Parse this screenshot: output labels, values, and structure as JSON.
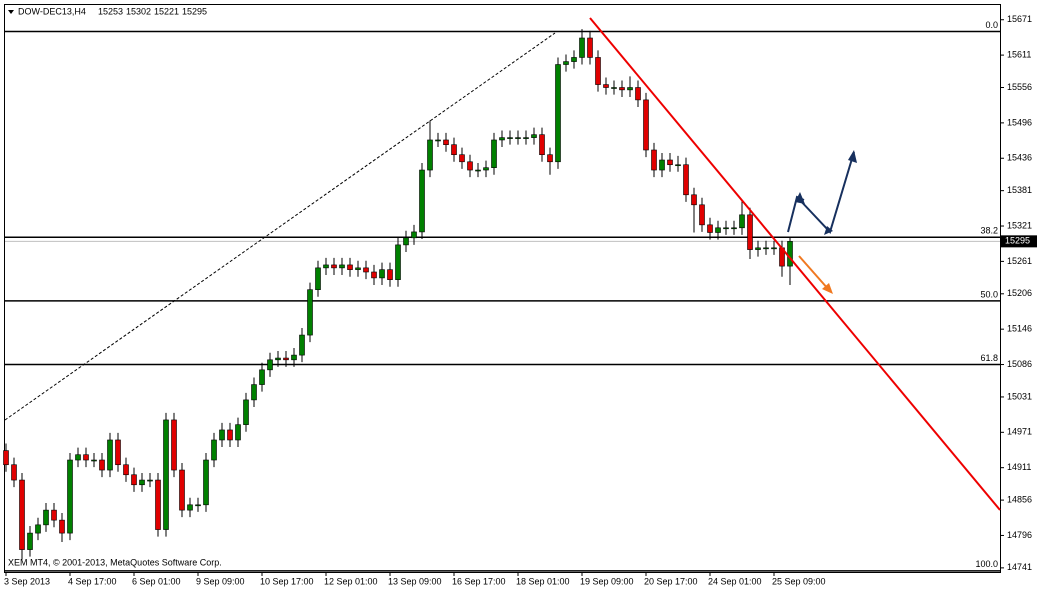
{
  "chart_data": {
    "type": "candlestick",
    "title": "DOW-DEC13,H4",
    "footer": "XEM MT4, © 2001-2013, MetaQuotes Software Corp.",
    "categories": [
      "3 Sep 2013",
      null,
      null,
      null,
      null,
      null,
      null,
      null,
      "4 Sep 17:00",
      null,
      null,
      null,
      null,
      null,
      null,
      null,
      "6 Sep 01:00",
      null,
      null,
      null,
      null,
      null,
      null,
      null,
      "9 Sep 09:00",
      null,
      null,
      null,
      null,
      null,
      null,
      null,
      "10 Sep 17:00",
      null,
      null,
      null,
      null,
      null,
      null,
      null,
      "12 Sep 01:00",
      null,
      null,
      null,
      null,
      null,
      null,
      null,
      "13 Sep 09:00",
      null,
      null,
      null,
      null,
      null,
      null,
      null,
      "16 Sep 17:00",
      null,
      null,
      null,
      null,
      null,
      null,
      null,
      "18 Sep 01:00",
      null,
      null,
      null,
      null,
      null,
      null,
      null,
      "19 Sep 09:00",
      null,
      null,
      null,
      null,
      null,
      null,
      null,
      "20 Sep 17:00",
      null,
      null,
      null,
      null,
      null,
      null,
      null,
      "24 Sep 01:00",
      null,
      null,
      null,
      null,
      null,
      null,
      null,
      "25 Sep 09:00",
      null,
      null
    ],
    "open": [
      14940,
      14916,
      14890,
      14772,
      14800,
      14814,
      14839,
      14822,
      14800,
      14924,
      14933,
      14924,
      14924,
      14907,
      14958,
      14916,
      14899,
      14882,
      14890,
      14890,
      14806,
      14992,
      14907,
      14839,
      14848,
      14848,
      14924,
      14958,
      14975,
      14958,
      14984,
      15026,
      15052,
      15077,
      15094,
      15097,
      15094,
      15102,
      15136,
      15213,
      15250,
      15255,
      15250,
      15255,
      15247,
      15250,
      15243,
      15233,
      15247,
      15230,
      15289,
      15301,
      15311,
      15416,
      15467,
      15467,
      15459,
      15442,
      15430,
      15416,
      15416,
      15420,
      15467,
      15471,
      15471,
      15471,
      15471,
      15476,
      15442,
      15430,
      15595,
      15600,
      15607,
      15640,
      15607,
      15561,
      15556,
      15556,
      15552,
      15556,
      15535,
      15450,
      15416,
      15433,
      15425,
      15425,
      15374,
      15357,
      15323,
      15310,
      15318,
      15318,
      15318,
      15340,
      15281,
      15284,
      15284,
      15284,
      15253
    ],
    "high": [
      14952,
      14928,
      14902,
      14812,
      14826,
      14851,
      14851,
      14834,
      14936,
      14945,
      14945,
      14936,
      14936,
      14970,
      14970,
      14928,
      14911,
      14902,
      14902,
      14902,
      15004,
      15004,
      14919,
      14860,
      14860,
      14936,
      14970,
      14987,
      14987,
      14996,
      15038,
      15064,
      15089,
      15106,
      15109,
      15109,
      15114,
      15148,
      15225,
      15262,
      15267,
      15267,
      15267,
      15267,
      15262,
      15262,
      15255,
      15259,
      15259,
      15301,
      15313,
      15323,
      15428,
      15500,
      15479,
      15479,
      15471,
      15454,
      15442,
      15428,
      15432,
      15479,
      15483,
      15483,
      15483,
      15483,
      15488,
      15488,
      15454,
      15607,
      15612,
      15619,
      15655,
      15652,
      15619,
      15573,
      15568,
      15568,
      15575,
      15568,
      15547,
      15462,
      15445,
      15445,
      15440,
      15437,
      15386,
      15369,
      15335,
      15330,
      15330,
      15330,
      15365,
      15352,
      15296,
      15296,
      15296,
      15296,
      15302
    ],
    "low": [
      14904,
      14878,
      14755,
      14760,
      14788,
      14802,
      14810,
      14785,
      14788,
      14912,
      14912,
      14912,
      14895,
      14895,
      14904,
      14887,
      14870,
      14870,
      14878,
      14794,
      14794,
      14895,
      14827,
      14827,
      14836,
      14836,
      14912,
      14946,
      14946,
      14946,
      14972,
      15014,
      15040,
      15065,
      15082,
      15082,
      15082,
      15090,
      15124,
      15201,
      15238,
      15238,
      15238,
      15235,
      15235,
      15231,
      15221,
      15221,
      15218,
      15218,
      15277,
      15289,
      15299,
      15404,
      15455,
      15447,
      15430,
      15418,
      15404,
      15404,
      15404,
      15408,
      15455,
      15459,
      15459,
      15459,
      15459,
      15430,
      15408,
      15418,
      15583,
      15588,
      15595,
      15595,
      15549,
      15544,
      15544,
      15540,
      15540,
      15523,
      15438,
      15404,
      15404,
      15413,
      15413,
      15362,
      15310,
      15311,
      15298,
      15298,
      15306,
      15306,
      15306,
      15265,
      15269,
      15272,
      15272,
      15235,
      15221
    ],
    "close": [
      14916,
      14890,
      14772,
      14800,
      14814,
      14839,
      14822,
      14800,
      14924,
      14933,
      14924,
      14924,
      14907,
      14958,
      14916,
      14899,
      14882,
      14890,
      14890,
      14806,
      14992,
      14907,
      14839,
      14848,
      14848,
      14924,
      14958,
      14975,
      14958,
      14984,
      15026,
      15052,
      15077,
      15094,
      15097,
      15094,
      15102,
      15136,
      15213,
      15250,
      15255,
      15250,
      15255,
      15247,
      15250,
      15243,
      15233,
      15247,
      15230,
      15289,
      15301,
      15311,
      15416,
      15467,
      15467,
      15459,
      15442,
      15430,
      15416,
      15416,
      15420,
      15467,
      15471,
      15471,
      15471,
      15471,
      15476,
      15442,
      15430,
      15595,
      15600,
      15607,
      15640,
      15607,
      15561,
      15556,
      15556,
      15552,
      15556,
      15535,
      15450,
      15416,
      15433,
      15425,
      15425,
      15374,
      15357,
      15323,
      15310,
      15318,
      15318,
      15318,
      15340,
      15281,
      15284,
      15284,
      15284,
      15253,
      15295
    ],
    "up_color": "#008000",
    "down_color": "#e00000",
    "ylim": [
      14734,
      15696
    ],
    "yticks": [
      15671,
      15611,
      15556,
      15496,
      15436,
      15381,
      15321,
      15261,
      15206,
      15146,
      15086,
      15031,
      14971,
      14911,
      14856,
      14796,
      14741
    ],
    "levels": [
      {
        "label": "0.0",
        "value": 15651
      },
      {
        "label": "38.2",
        "value": 15302
      },
      {
        "label": "50.0",
        "value": 15194
      },
      {
        "label": "61.8",
        "value": 15086
      },
      {
        "label": "100.0",
        "value": 14736
      }
    ]
  }
}
